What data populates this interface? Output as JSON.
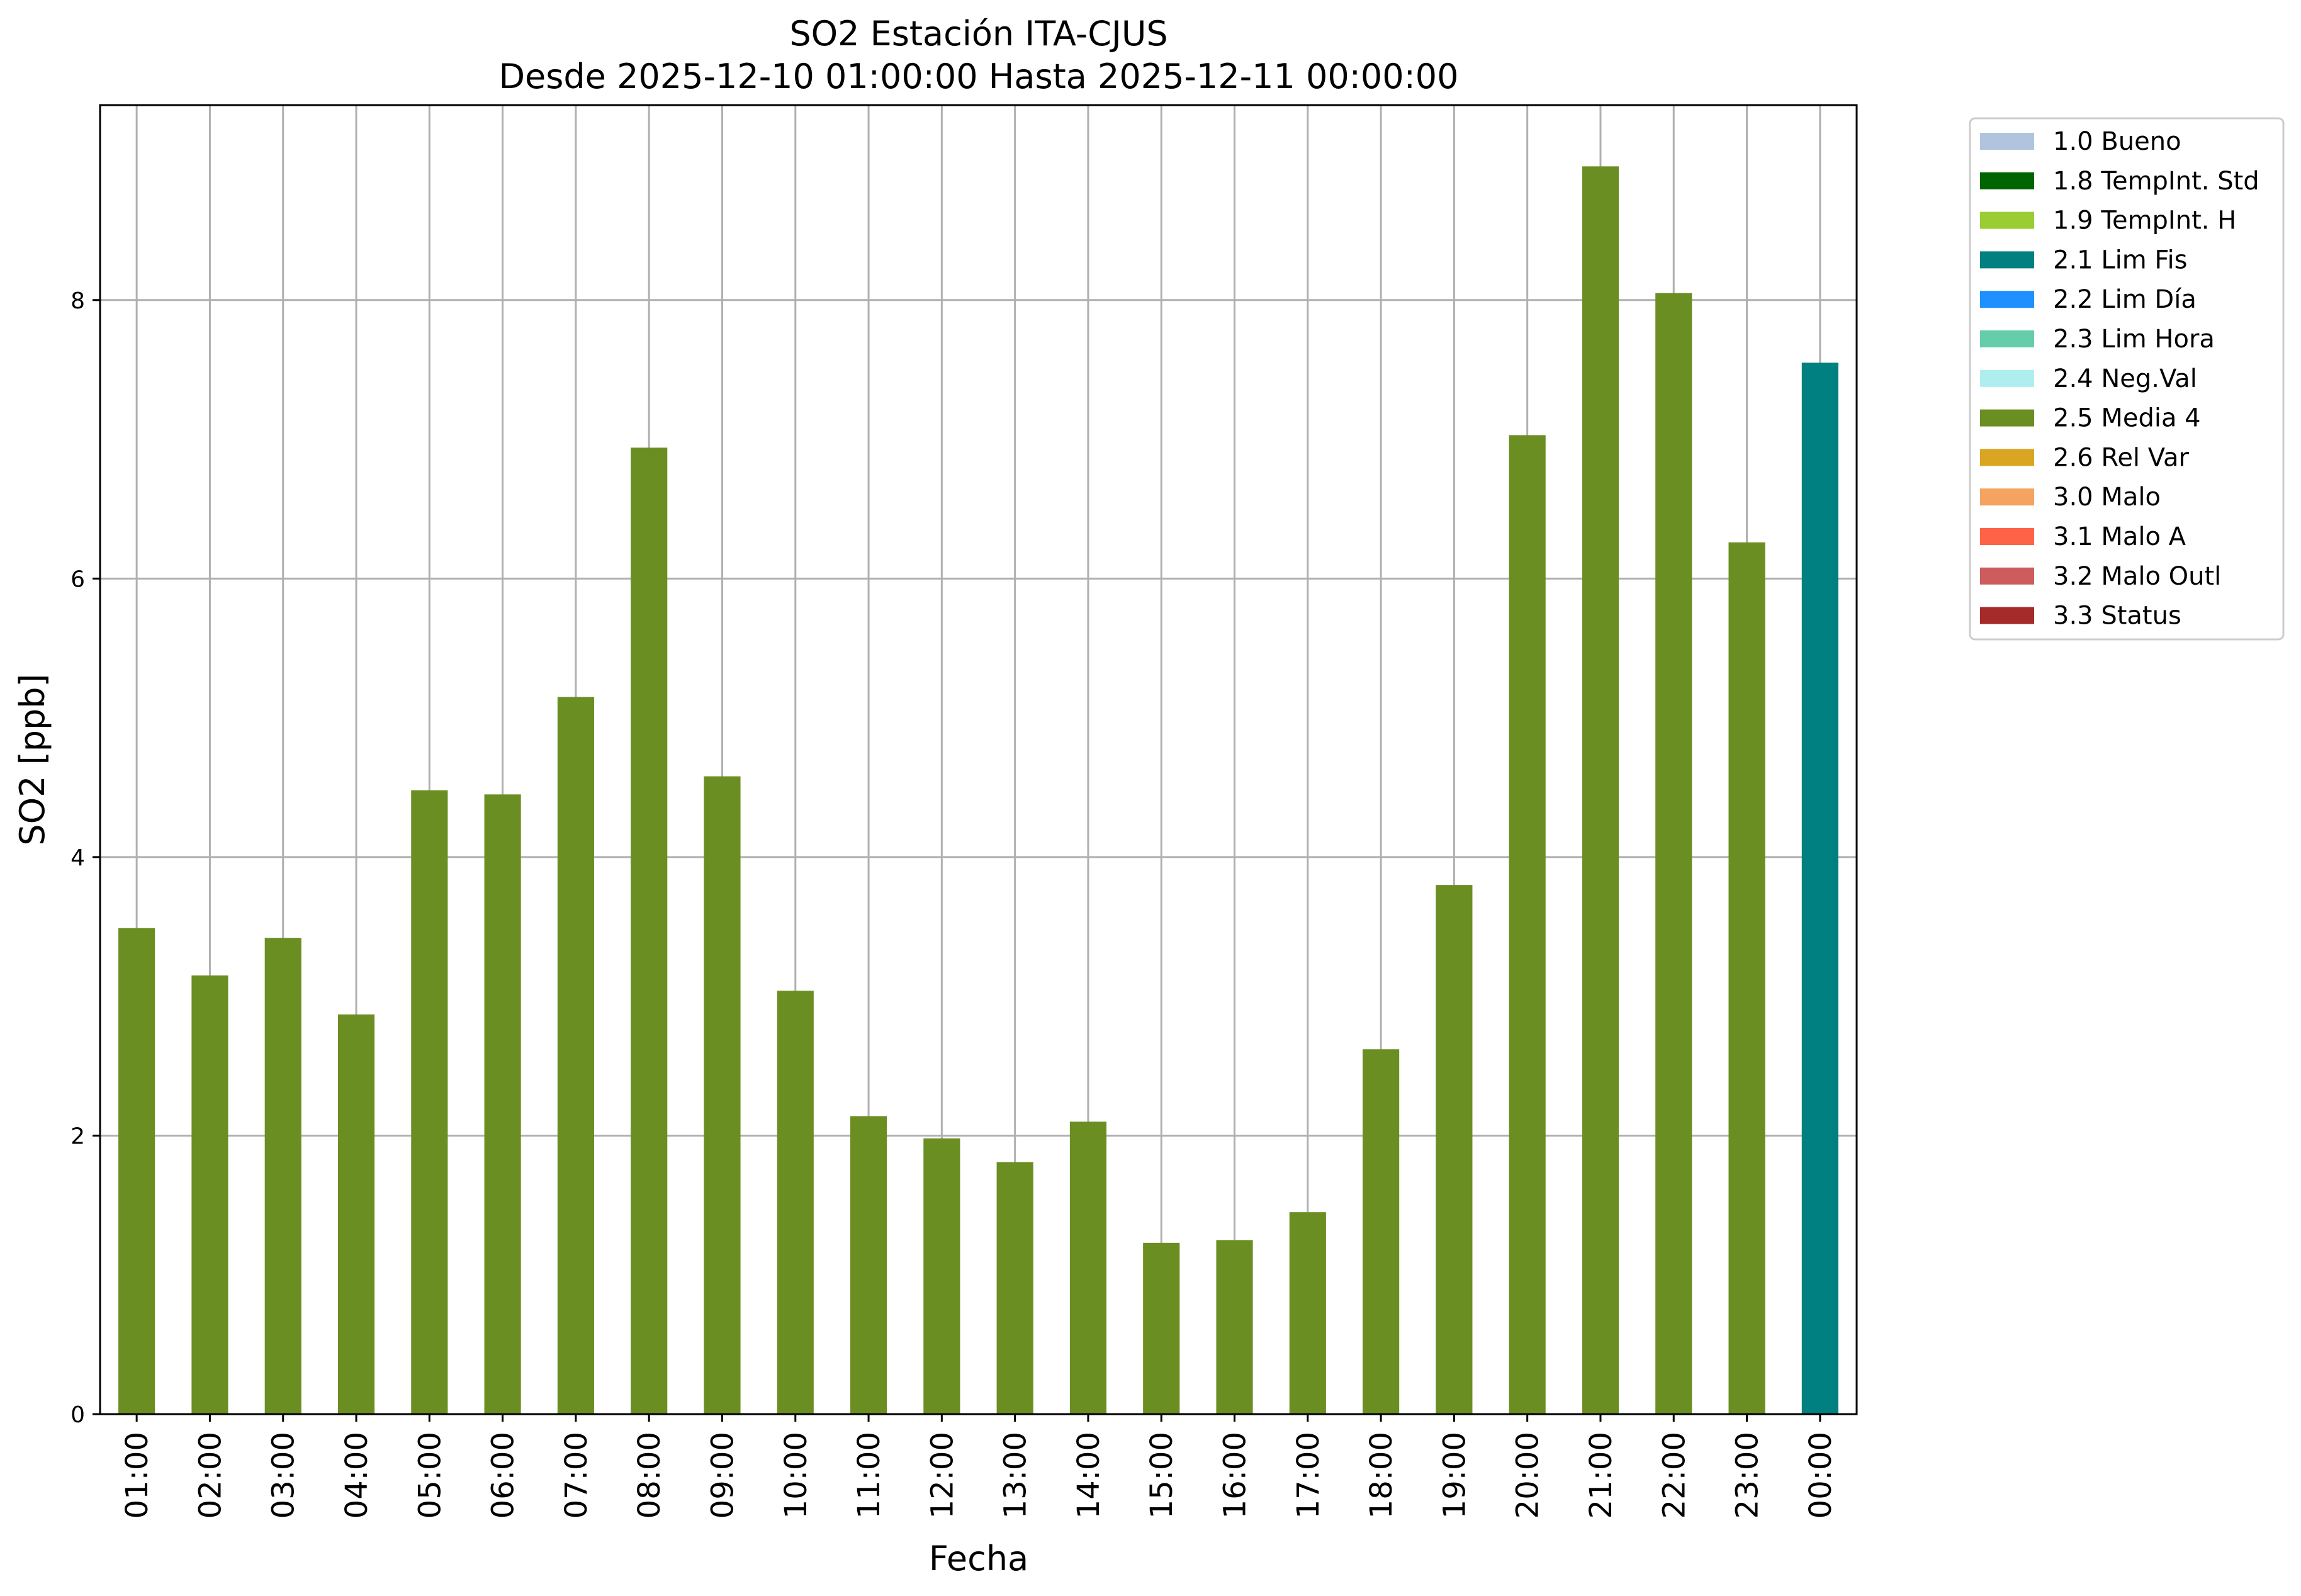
{
  "chart_data": {
    "type": "bar",
    "title": "SO2 Estación ITA-CJUS",
    "subtitle": "Desde 2025-12-10 01:00:00 Hasta 2025-12-11 00:00:00",
    "xlabel": "Fecha",
    "ylabel": "SO2 [ppb]",
    "ylim": [
      0,
      9.4
    ],
    "yticks": [
      0,
      2,
      4,
      6,
      8
    ],
    "grid": true,
    "legend_position": "outside-top-right",
    "categories": [
      "01:00",
      "02:00",
      "03:00",
      "04:00",
      "05:00",
      "06:00",
      "07:00",
      "08:00",
      "09:00",
      "10:00",
      "11:00",
      "12:00",
      "13:00",
      "14:00",
      "15:00",
      "16:00",
      "17:00",
      "18:00",
      "19:00",
      "20:00",
      "21:00",
      "22:00",
      "23:00",
      "00:00"
    ],
    "values": [
      3.49,
      3.15,
      3.42,
      2.87,
      4.48,
      4.45,
      5.15,
      6.94,
      4.58,
      3.04,
      2.14,
      1.98,
      1.81,
      2.1,
      1.23,
      1.25,
      1.45,
      2.62,
      3.8,
      7.03,
      8.96,
      8.05,
      6.26,
      7.55
    ],
    "flags": [
      "2.5 Media 4",
      "2.5 Media 4",
      "2.5 Media 4",
      "2.5 Media 4",
      "2.5 Media 4",
      "2.5 Media 4",
      "2.5 Media 4",
      "2.5 Media 4",
      "2.5 Media 4",
      "2.5 Media 4",
      "2.5 Media 4",
      "2.5 Media 4",
      "2.5 Media 4",
      "2.5 Media 4",
      "2.5 Media 4",
      "2.5 Media 4",
      "2.5 Media 4",
      "2.5 Media 4",
      "2.5 Media 4",
      "2.5 Media 4",
      "2.5 Media 4",
      "2.5 Media 4",
      "2.5 Media 4",
      "2.1 Lim Fis"
    ],
    "legend": [
      {
        "label": "1.0 Bueno",
        "color": "#b0c4de"
      },
      {
        "label": "1.8 TempInt. Std",
        "color": "#006400"
      },
      {
        "label": "1.9 TempInt. H",
        "color": "#9acd32"
      },
      {
        "label": "2.1 Lim Fis",
        "color": "#008080"
      },
      {
        "label": "2.2 Lim Día",
        "color": "#1e90ff"
      },
      {
        "label": "2.3 Lim Hora",
        "color": "#66cdaa"
      },
      {
        "label": "2.4 Neg.Val",
        "color": "#afeeee"
      },
      {
        "label": "2.5 Media 4",
        "color": "#6b8e23"
      },
      {
        "label": "2.6 Rel Var",
        "color": "#daa520"
      },
      {
        "label": "3.0 Malo",
        "color": "#f4a460"
      },
      {
        "label": "3.1 Malo A",
        "color": "#ff6347"
      },
      {
        "label": "3.2 Malo Outl",
        "color": "#cd5c5c"
      },
      {
        "label": "3.3 Status",
        "color": "#a52a2a"
      }
    ]
  }
}
